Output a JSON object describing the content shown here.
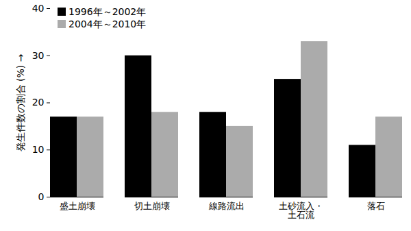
{
  "chart_data": {
    "type": "bar",
    "y_label": "発生件数の割合 (%)",
    "categories": [
      "盛土崩壊",
      "切土崩壊",
      "線路流出",
      "土砂流入・\n土石流",
      "落石"
    ],
    "series": [
      {
        "name": "1996年～2002年",
        "color": "#000000",
        "values": [
          17,
          30,
          18,
          25,
          11
        ]
      },
      {
        "name": "2004年～2010年",
        "color": "#ababab",
        "values": [
          17,
          18,
          15,
          33,
          17
        ]
      }
    ],
    "ylim": [
      0,
      40
    ],
    "yticks": [
      0,
      10,
      20,
      30,
      40
    ],
    "grid": false,
    "legend": "upper left"
  }
}
